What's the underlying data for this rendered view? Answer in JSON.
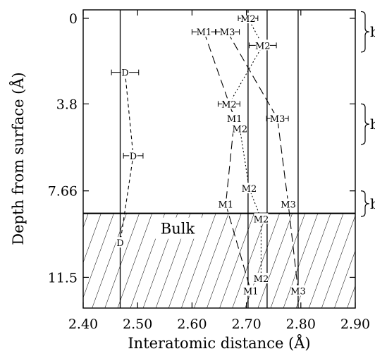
{
  "chart_data": {
    "type": "scatter",
    "title": "",
    "xlabel": "Interatomic distance (Å)",
    "ylabel": "Depth from surface (Å)",
    "xlim": [
      2.4,
      2.9
    ],
    "ylim": [
      0,
      12.4
    ],
    "y_inverted": true,
    "grid": false,
    "legend": "none",
    "x_ticks": [
      "2.40",
      "2.50",
      "2.60",
      "2.70",
      "2.80",
      "2.90"
    ],
    "x_tick_values": [
      2.4,
      2.5,
      2.6,
      2.7,
      2.8,
      2.9
    ],
    "y_ticks": [
      "0",
      "3.8",
      "7.66",
      "11.5"
    ],
    "y_tick_values": [
      0,
      3.8,
      7.66,
      11.5
    ],
    "reference_lines_x": [
      2.468,
      2.703,
      2.738,
      2.795
    ],
    "bulk_region": {
      "label": "Bulk",
      "from_depth": 8.66,
      "to_depth": 12.4
    },
    "bulk_top_depth": 8.66,
    "layer_brackets": [
      {
        "label": "bilayer",
        "from_depth": -0.3,
        "to_depth": 1.5
      },
      {
        "label": "bilayer",
        "from_depth": 3.8,
        "to_depth": 5.6
      },
      {
        "label": "bilayer",
        "from_depth": 7.66,
        "to_depth": 8.8
      }
    ],
    "series": [
      {
        "line": "short-dash",
        "points": [
          {
            "label": "D",
            "x": 2.477,
            "y": 2.4,
            "err": 0.025
          },
          {
            "label": "D",
            "x": 2.492,
            "y": 6.1,
            "err": 0.018
          },
          {
            "label": "D",
            "x": 2.468,
            "y": 9.96,
            "err": 0
          }
        ]
      },
      {
        "line": "long-dash",
        "points": [
          {
            "label": "M1",
            "x": 2.622,
            "y": 0.6,
            "err": 0.022
          },
          {
            "label": "M1",
            "x": 2.678,
            "y": 4.45,
            "err": 0.012
          },
          {
            "label": "M1",
            "x": 2.662,
            "y": 8.25,
            "err": 0
          },
          {
            "label": "M1",
            "x": 2.708,
            "y": 12.1,
            "err": 0
          }
        ]
      },
      {
        "line": "dotted",
        "points": [
          {
            "label": "M2",
            "x": 2.703,
            "y": 0,
            "err": 0.018
          },
          {
            "label": "M2",
            "x": 2.73,
            "y": 1.2,
            "err": 0.025
          },
          {
            "label": "M2",
            "x": 2.668,
            "y": 3.8,
            "err": 0.02
          },
          {
            "label": "M2",
            "x": 2.688,
            "y": 4.9,
            "err": 0.012
          },
          {
            "label": "M2",
            "x": 2.705,
            "y": 7.55,
            "err": 0
          },
          {
            "label": "M2",
            "x": 2.727,
            "y": 8.9,
            "err": 0
          },
          {
            "label": "M2",
            "x": 2.727,
            "y": 11.55,
            "err": 0
          }
        ]
      },
      {
        "line": "long-dash",
        "points": [
          {
            "label": "M3",
            "x": 2.665,
            "y": 0.6,
            "err": 0.022
          },
          {
            "label": "M3",
            "x": 2.757,
            "y": 4.45,
            "err": 0.02
          },
          {
            "label": "M3",
            "x": 2.777,
            "y": 8.25,
            "err": 0
          },
          {
            "label": "M3",
            "x": 2.795,
            "y": 12.1,
            "err": 0
          }
        ]
      }
    ]
  }
}
